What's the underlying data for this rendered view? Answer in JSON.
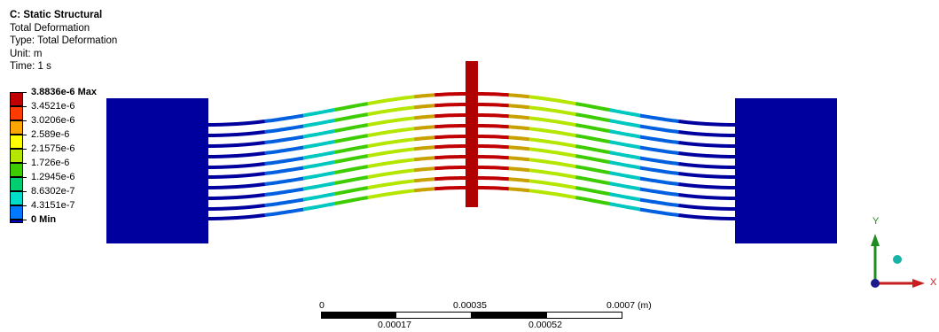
{
  "info": {
    "title": "C: Static Structural",
    "result": "Total Deformation",
    "type": "Type: Total Deformation",
    "unit": "Unit: m",
    "time": "Time: 1 s"
  },
  "legend": {
    "labels": [
      "3.8836e-6 Max",
      "3.4521e-6",
      "3.0206e-6",
      "2.589e-6",
      "2.1575e-6",
      "1.726e-6",
      "1.2945e-6",
      "8.6302e-7",
      "4.3151e-7",
      "0 Min"
    ],
    "colors": [
      "#c00000",
      "#ff3b00",
      "#ffa500",
      "#ffff00",
      "#b4e600",
      "#3ccc00",
      "#00cc70",
      "#00dcc8",
      "#0078ff",
      "#0000cd"
    ]
  },
  "scale": {
    "top_labels": [
      "0",
      "0.00035",
      "0.0007 (m)"
    ],
    "bottom_labels": [
      "0.00017",
      "0.00052"
    ]
  },
  "triad": {
    "x_label": "X",
    "y_label": "Y"
  }
}
